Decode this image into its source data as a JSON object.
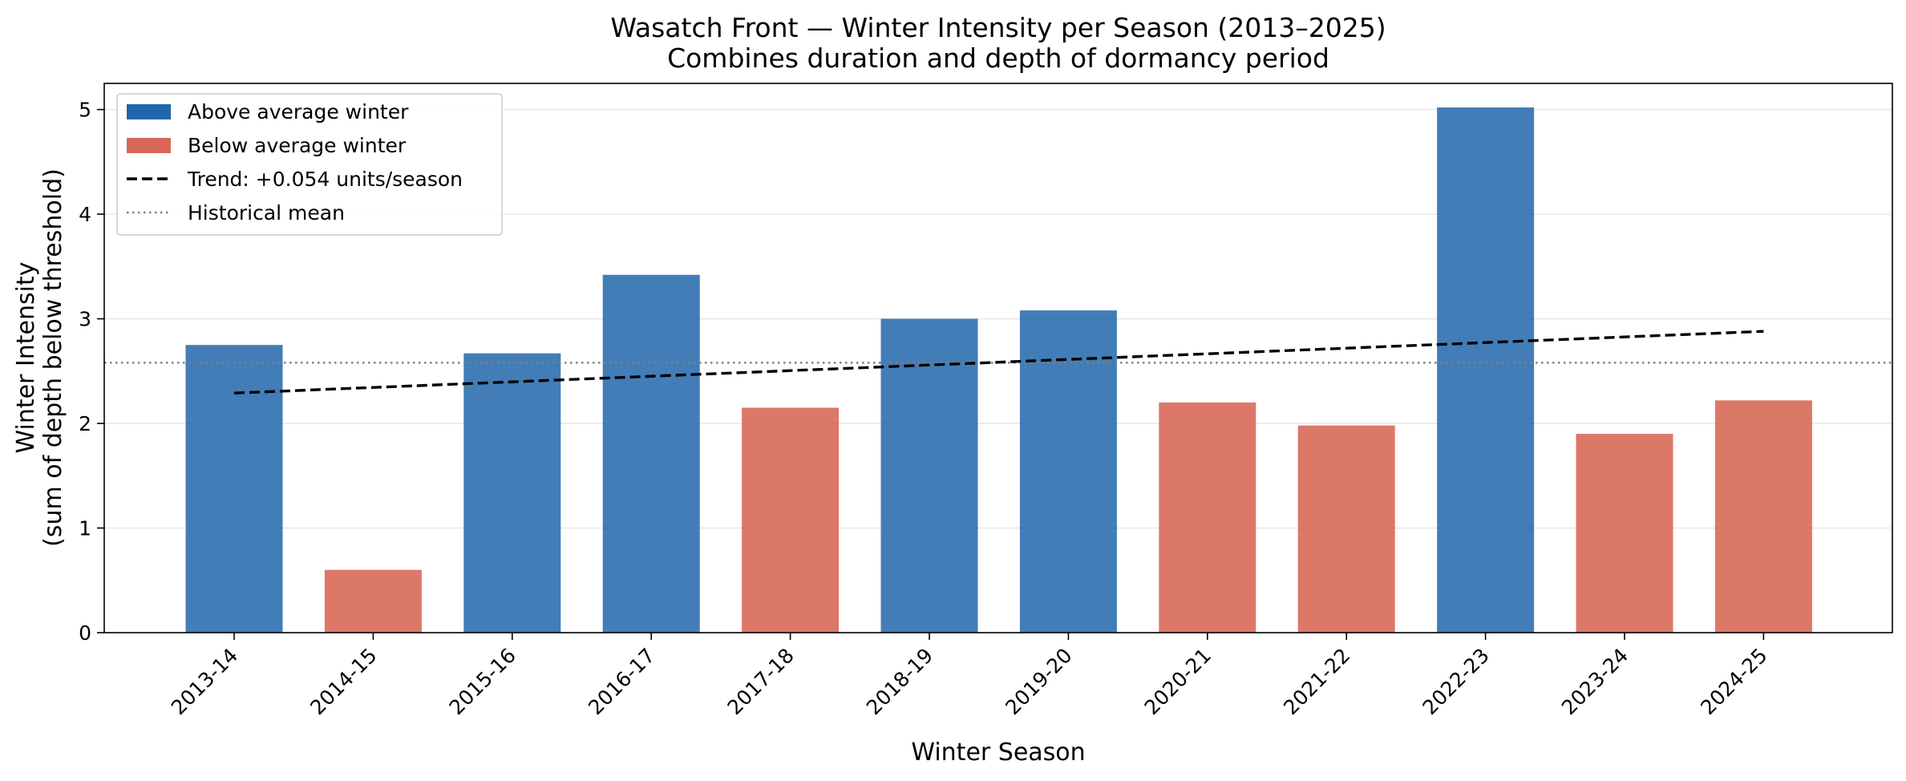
{
  "chart_data": {
    "type": "bar",
    "title": "Wasatch Front — Winter Intensity per Season (2013–2025)",
    "subtitle": "Combines duration and depth of dormancy period",
    "xlabel": "Winter Season",
    "ylabel": [
      "Winter Intensity",
      "(sum of depth below threshold)"
    ],
    "categories": [
      "2013-14",
      "2014-15",
      "2015-16",
      "2016-17",
      "2017-18",
      "2018-19",
      "2019-20",
      "2020-21",
      "2021-22",
      "2022-23",
      "2023-24",
      "2024-25"
    ],
    "values": [
      2.75,
      0.6,
      2.67,
      3.42,
      2.15,
      3.0,
      3.08,
      2.2,
      1.98,
      5.02,
      1.9,
      2.22
    ],
    "classes": [
      "above",
      "below",
      "above",
      "above",
      "below",
      "above",
      "above",
      "below",
      "below",
      "above",
      "below",
      "above_low"
    ],
    "ylim": [
      0,
      5.25
    ],
    "yticks": [
      0,
      1,
      2,
      3,
      4,
      5
    ],
    "historical_mean": 2.58,
    "trend": {
      "start": 2.29,
      "end": 2.88
    },
    "colors": {
      "above": "#2166ac",
      "below": "#d6604d",
      "trend": "#000000",
      "mean": "#808080"
    },
    "grid": "y",
    "legend_position": "upper-left",
    "legend": [
      {
        "kind": "patch",
        "key": "above",
        "label": "Above average winter"
      },
      {
        "kind": "patch",
        "key": "below",
        "label": "Below average winter"
      },
      {
        "kind": "dash",
        "key": "trend",
        "label": "Trend: +0.054 units/season"
      },
      {
        "kind": "dot",
        "key": "mean",
        "label": "Historical mean"
      }
    ]
  }
}
